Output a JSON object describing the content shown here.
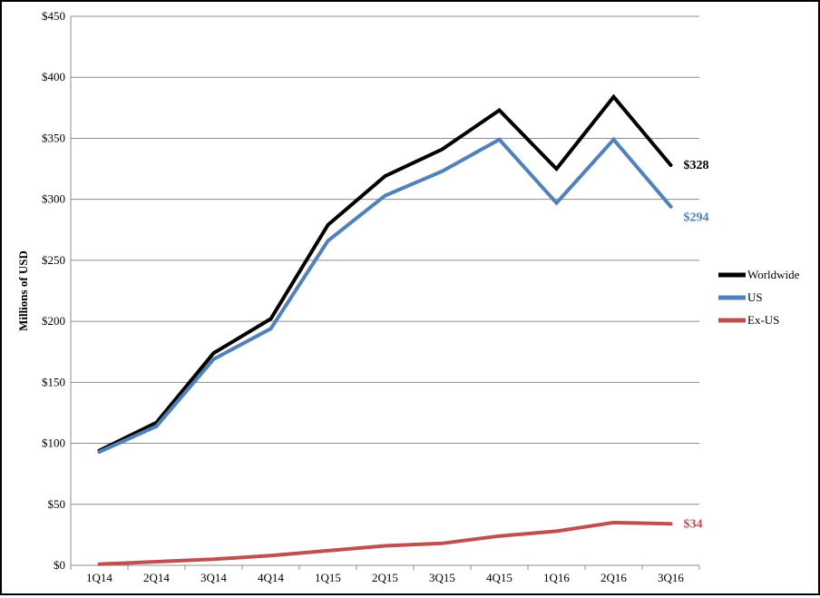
{
  "chart_data": {
    "type": "line",
    "title": "",
    "xlabel": "",
    "ylabel": "Millions of USD",
    "categories": [
      "1Q14",
      "2Q14",
      "3Q14",
      "4Q14",
      "1Q15",
      "2Q15",
      "3Q15",
      "4Q15",
      "1Q16",
      "2Q16",
      "3Q16"
    ],
    "ylim": [
      0,
      450
    ],
    "yticks": [
      0,
      50,
      100,
      150,
      200,
      250,
      300,
      350,
      400,
      450
    ],
    "ytick_labels": [
      "$0",
      "$50",
      "$100",
      "$150",
      "$200",
      "$250",
      "$300",
      "$350",
      "$400",
      "$450"
    ],
    "grid": true,
    "legend_position": "right",
    "series": [
      {
        "name": "Worldwide",
        "color": "#000000",
        "values": [
          94,
          117,
          174,
          202,
          279,
          319,
          341,
          373,
          325,
          384,
          328
        ],
        "end_label": "$328"
      },
      {
        "name": "US",
        "color": "#4f81bd",
        "values": [
          93,
          114,
          169,
          194,
          266,
          303,
          323,
          349,
          297,
          349,
          294
        ],
        "end_label": "$294"
      },
      {
        "name": "Ex-US",
        "color": "#c0504d",
        "values": [
          1,
          3,
          5,
          8,
          12,
          16,
          18,
          24,
          28,
          35,
          34
        ],
        "end_label": "$34"
      }
    ]
  }
}
